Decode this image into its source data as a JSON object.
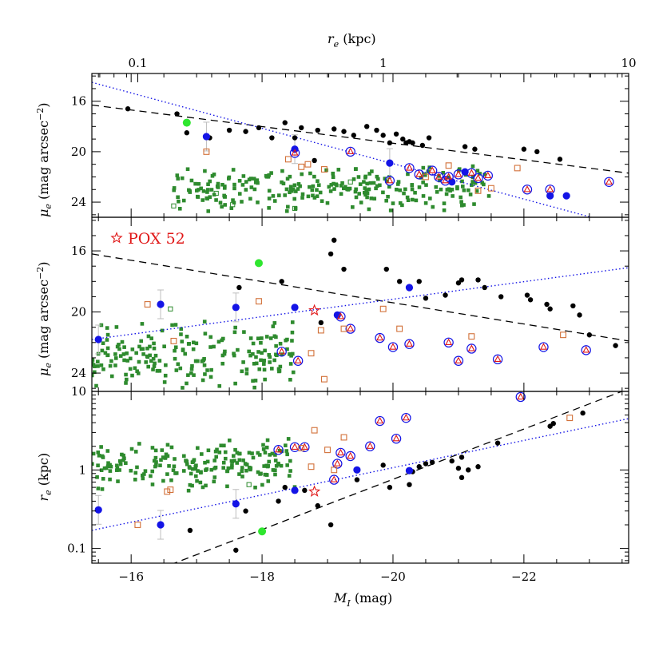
{
  "chart_data": [
    {
      "type": "scatter",
      "panel": "top",
      "xlabel": "M_I (mag)",
      "x_reversed": true,
      "xlim": [
        -15.4,
        -23.6
      ],
      "ylabel": "μ_e (mag arcsec⁻²)",
      "ylim": [
        25.2,
        13.8
      ],
      "y_inverted": true,
      "yticks": [
        16,
        20,
        24
      ],
      "top_axis": {
        "label": "r_e (kpc)",
        "log": true,
        "range": [
          0.065,
          10
        ],
        "ticklabels": [
          "0.1",
          "1",
          "10"
        ]
      },
      "series": [
        {
          "kind": "black-dot",
          "points": [
            [
              -15.95,
              16.6
            ],
            [
              -16.85,
              18.5
            ],
            [
              -16.7,
              17.0
            ],
            [
              -17.2,
              18.9
            ],
            [
              -17.5,
              18.3
            ],
            [
              -17.75,
              18.4
            ],
            [
              -17.95,
              18.1
            ],
            [
              -18.15,
              18.9
            ],
            [
              -18.35,
              17.7
            ],
            [
              -18.5,
              18.9
            ],
            [
              -18.6,
              18.1
            ],
            [
              -18.8,
              20.7
            ],
            [
              -18.85,
              18.3
            ],
            [
              -19.1,
              18.2
            ],
            [
              -19.25,
              18.4
            ],
            [
              -19.4,
              18.7
            ],
            [
              -19.6,
              18.0
            ],
            [
              -19.75,
              18.3
            ],
            [
              -19.85,
              18.7
            ],
            [
              -19.95,
              19.3
            ],
            [
              -20.05,
              18.6
            ],
            [
              -20.15,
              19.0
            ],
            [
              -20.2,
              19.3
            ],
            [
              -20.25,
              19.2
            ],
            [
              -20.3,
              19.3
            ],
            [
              -20.45,
              19.5
            ],
            [
              -20.55,
              18.9
            ],
            [
              -21.1,
              19.6
            ],
            [
              -21.25,
              19.8
            ],
            [
              -22.0,
              19.8
            ],
            [
              -22.2,
              20.0
            ],
            [
              -22.55,
              20.6
            ]
          ]
        },
        {
          "kind": "blue-dot",
          "points": [
            [
              -17.15,
              18.8
            ],
            [
              -18.5,
              19.8
            ],
            [
              -19.95,
              20.9
            ],
            [
              -20.9,
              22.4
            ],
            [
              -21.1,
              21.6
            ],
            [
              -22.4,
              23.5
            ],
            [
              -22.65,
              23.5
            ]
          ]
        },
        {
          "kind": "green-dot",
          "points": [
            [
              -16.85,
              17.7
            ]
          ]
        },
        {
          "kind": "ringed-triangle",
          "points": [
            [
              -18.5,
              20.1
            ],
            [
              -19.35,
              20.0
            ],
            [
              -20.25,
              21.3
            ],
            [
              -20.6,
              21.5
            ],
            [
              -20.8,
              22.3
            ],
            [
              -20.85,
              22.0
            ],
            [
              -21.0,
              21.8
            ],
            [
              -21.2,
              21.7
            ],
            [
              -21.3,
              22.1
            ],
            [
              -21.45,
              21.9
            ],
            [
              -22.05,
              23.0
            ],
            [
              -22.4,
              23.0
            ],
            [
              -23.3,
              22.4
            ],
            [
              -19.95,
              22.3
            ],
            [
              -20.4,
              21.8
            ],
            [
              -20.7,
              22.0
            ]
          ]
        },
        {
          "kind": "open-orange-square",
          "points": [
            [
              -17.15,
              20.0
            ],
            [
              -18.4,
              20.6
            ],
            [
              -18.6,
              21.2
            ],
            [
              -18.7,
              21.0
            ],
            [
              -18.95,
              21.4
            ],
            [
              -21.3,
              23.1
            ],
            [
              -21.5,
              22.9
            ],
            [
              -21.9,
              21.3
            ],
            [
              -20.5,
              22.0
            ],
            [
              -20.85,
              21.1
            ]
          ]
        },
        {
          "kind": "open-green-square",
          "points": [
            [
              -16.65,
              24.3
            ],
            [
              -17.3,
              23.3
            ],
            [
              -17.55,
              24.2
            ],
            [
              -18.5,
              24.5
            ],
            [
              -19.35,
              22.4
            ]
          ]
        },
        {
          "kind": "green-square",
          "count": 260,
          "x_range": [
            -16.65,
            -21.5
          ],
          "y_range": [
            21.0,
            24.9
          ]
        }
      ],
      "fits": [
        {
          "style": "black-dashed",
          "from": [
            -15.4,
            16.3
          ],
          "to": [
            -23.6,
            21.7
          ]
        },
        {
          "style": "blue-dotted",
          "from": [
            -15.4,
            14.5
          ],
          "to": [
            -23.6,
            26.0
          ]
        }
      ]
    },
    {
      "type": "scatter",
      "panel": "middle",
      "xlabel": "M_I (mag)",
      "x_reversed": true,
      "xlim": [
        -15.4,
        -23.6
      ],
      "ylabel": "μ_e (mag arcsec⁻²)",
      "ylim": [
        25.2,
        13.8
      ],
      "y_inverted": true,
      "yticks": [
        16,
        20,
        24
      ],
      "legend": {
        "symbol": "open-red-star",
        "label": "POX 52"
      },
      "series": [
        {
          "kind": "black-dot",
          "points": [
            [
              -17.65,
              18.4
            ],
            [
              -18.3,
              18.0
            ],
            [
              -18.9,
              20.7
            ],
            [
              -19.05,
              16.2
            ],
            [
              -19.1,
              15.3
            ],
            [
              -19.25,
              17.2
            ],
            [
              -19.9,
              17.2
            ],
            [
              -20.1,
              18.0
            ],
            [
              -20.4,
              18.0
            ],
            [
              -20.5,
              19.1
            ],
            [
              -20.8,
              18.9
            ],
            [
              -21.0,
              18.1
            ],
            [
              -21.05,
              17.9
            ],
            [
              -21.3,
              17.9
            ],
            [
              -21.4,
              18.4
            ],
            [
              -21.65,
              19.0
            ],
            [
              -22.1,
              19.2
            ],
            [
              -22.35,
              19.5
            ],
            [
              -22.4,
              19.8
            ],
            [
              -22.85,
              20.2
            ],
            [
              -23.0,
              21.5
            ],
            [
              -23.4,
              22.2
            ],
            [
              -22.75,
              19.6
            ],
            [
              -22.05,
              18.9
            ]
          ]
        },
        {
          "kind": "blue-dot",
          "points": [
            [
              -15.5,
              21.8
            ],
            [
              -16.45,
              19.5
            ],
            [
              -17.6,
              19.7
            ],
            [
              -18.5,
              19.7
            ],
            [
              -19.15,
              20.2
            ],
            [
              -20.25,
              18.4
            ]
          ]
        },
        {
          "kind": "green-dot",
          "points": [
            [
              -17.95,
              16.8
            ]
          ]
        },
        {
          "kind": "ringed-triangle",
          "points": [
            [
              -18.3,
              22.6
            ],
            [
              -18.55,
              23.2
            ],
            [
              -19.2,
              20.3
            ],
            [
              -19.35,
              21.1
            ],
            [
              -19.8,
              21.7
            ],
            [
              -20.0,
              22.3
            ],
            [
              -20.25,
              22.1
            ],
            [
              -21.0,
              23.2
            ],
            [
              -21.6,
              23.1
            ],
            [
              -22.3,
              22.3
            ],
            [
              -22.95,
              22.5
            ],
            [
              -20.85,
              22.0
            ],
            [
              -21.2,
              22.4
            ]
          ]
        },
        {
          "kind": "open-orange-square",
          "points": [
            [
              -16.25,
              19.5
            ],
            [
              -16.65,
              21.9
            ],
            [
              -17.95,
              19.3
            ],
            [
              -18.75,
              22.7
            ],
            [
              -18.9,
              21.2
            ],
            [
              -18.95,
              24.4
            ],
            [
              -19.25,
              21.1
            ],
            [
              -19.85,
              19.8
            ],
            [
              -20.1,
              21.1
            ],
            [
              -21.2,
              21.6
            ],
            [
              -22.6,
              21.5
            ]
          ]
        },
        {
          "kind": "open-green-square",
          "points": [
            [
              -16.6,
              19.8
            ]
          ]
        },
        {
          "kind": "green-square",
          "count": 200,
          "x_range": [
            -15.4,
            -18.5
          ],
          "y_range": [
            20.5,
            25.2
          ]
        },
        {
          "kind": "open-red-star",
          "label": "POX 52",
          "points": [
            [
              -18.8,
              19.9
            ]
          ]
        }
      ],
      "fits": [
        {
          "style": "black-dashed",
          "from": [
            -15.4,
            16.2
          ],
          "to": [
            -23.6,
            21.9
          ]
        },
        {
          "style": "blue-dotted",
          "from": [
            -15.4,
            21.8
          ],
          "to": [
            -23.6,
            17.1
          ]
        }
      ]
    },
    {
      "type": "scatter",
      "panel": "bottom",
      "xlabel": "M_I (mag)",
      "x_reversed": true,
      "xlim": [
        -15.4,
        -23.6
      ],
      "xticks": [
        -16,
        -18,
        -20,
        -22
      ],
      "ylabel": "r_e (kpc)",
      "ylog": true,
      "ylim": [
        0.065,
        10
      ],
      "yticks": [
        "0.1",
        "1",
        "10"
      ],
      "series": [
        {
          "kind": "black-dot",
          "points": [
            [
              -16.9,
              0.17
            ],
            [
              -17.6,
              0.095
            ],
            [
              -17.75,
              0.3
            ],
            [
              -18.25,
              0.4
            ],
            [
              -18.65,
              0.55
            ],
            [
              -18.85,
              0.35
            ],
            [
              -19.05,
              0.2
            ],
            [
              -19.45,
              0.75
            ],
            [
              -19.95,
              0.6
            ],
            [
              -20.25,
              0.65
            ],
            [
              -20.4,
              1.1
            ],
            [
              -20.5,
              1.2
            ],
            [
              -20.6,
              1.25
            ],
            [
              -20.9,
              1.3
            ],
            [
              -21.0,
              1.05
            ],
            [
              -21.05,
              0.8
            ],
            [
              -21.15,
              1.0
            ],
            [
              -21.3,
              1.1
            ],
            [
              -21.6,
              2.2
            ],
            [
              -22.4,
              3.6
            ],
            [
              -22.45,
              3.9
            ],
            [
              -22.9,
              5.3
            ],
            [
              -21.05,
              1.45
            ],
            [
              -20.3,
              0.95
            ],
            [
              -19.85,
              1.15
            ],
            [
              -18.35,
              0.6
            ]
          ]
        },
        {
          "kind": "blue-dot",
          "points": [
            [
              -15.5,
              0.31
            ],
            [
              -16.45,
              0.2
            ],
            [
              -17.6,
              0.37
            ],
            [
              -18.5,
              0.55
            ],
            [
              -19.45,
              1.0
            ],
            [
              -20.25,
              0.98
            ]
          ]
        },
        {
          "kind": "green-dot",
          "points": [
            [
              -18.0,
              0.165
            ]
          ]
        },
        {
          "kind": "ringed-triangle",
          "points": [
            [
              -18.25,
              1.8
            ],
            [
              -18.5,
              1.95
            ],
            [
              -19.1,
              0.75
            ],
            [
              -19.15,
              1.2
            ],
            [
              -19.35,
              1.5
            ],
            [
              -19.65,
              2.0
            ],
            [
              -19.8,
              4.2
            ],
            [
              -20.05,
              2.5
            ],
            [
              -20.2,
              4.6
            ],
            [
              -21.95,
              8.5
            ],
            [
              -18.65,
              1.95
            ],
            [
              -19.2,
              1.65
            ]
          ]
        },
        {
          "kind": "open-orange-square",
          "points": [
            [
              -16.1,
              0.2
            ],
            [
              -16.55,
              0.53
            ],
            [
              -16.6,
              0.56
            ],
            [
              -18.75,
              1.1
            ],
            [
              -18.8,
              3.2
            ],
            [
              -19.0,
              1.8
            ],
            [
              -19.1,
              1.0
            ],
            [
              -19.25,
              2.6
            ],
            [
              -22.7,
              4.6
            ],
            [
              -18.6,
              1.9
            ]
          ]
        },
        {
          "kind": "open-green-square",
          "points": [
            [
              -17.8,
              0.65
            ]
          ]
        },
        {
          "kind": "green-square",
          "count": 200,
          "x_range": [
            -15.4,
            -18.5
          ],
          "y_range": [
            0.5,
            2.6
          ]
        },
        {
          "kind": "open-red-star",
          "label": "POX 52",
          "points": [
            [
              -18.8,
              0.53
            ]
          ]
        }
      ],
      "fits": [
        {
          "style": "black-dashed",
          "from": [
            -16.6,
            0.062
          ],
          "to": [
            -23.6,
            10.8
          ]
        },
        {
          "style": "blue-dotted",
          "from": [
            -15.4,
            0.17
          ],
          "to": [
            -23.6,
            4.5
          ]
        }
      ]
    }
  ],
  "colors": {
    "black": "#000000",
    "blue": "#1414e6",
    "green": "#2e8b2e",
    "lime": "#2fe62f",
    "orange": "#d27038",
    "red": "#e01818",
    "errorbar": "#bdbdbd"
  }
}
